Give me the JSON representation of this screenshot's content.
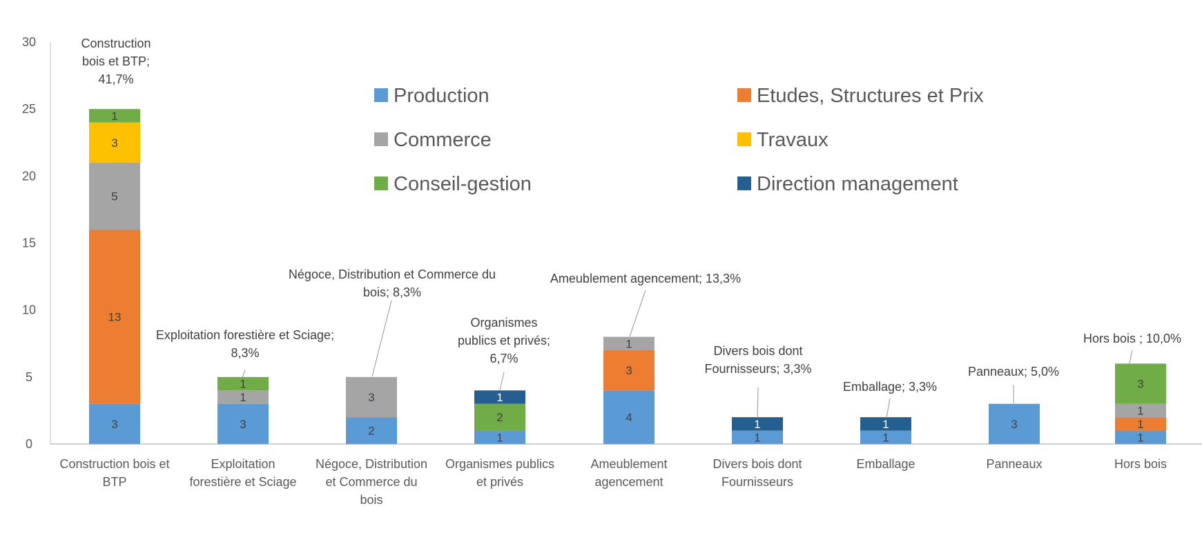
{
  "chart_data": {
    "type": "bar",
    "stacked": true,
    "categories": [
      "Construction bois et BTP",
      "Exploitation forestière et Sciage",
      "Négoce, Distribution et Commerce du bois",
      "Organismes publics et privés",
      "Ameublement agencement",
      "Divers bois dont Fournisseurs",
      "Emballage",
      "Panneaux",
      "Hors bois"
    ],
    "series": [
      {
        "name": "Production",
        "color": "#5B9BD5",
        "values": [
          3,
          3,
          2,
          1,
          4,
          1,
          1,
          3,
          1
        ]
      },
      {
        "name": "Etudes, Structures et Prix",
        "color": "#ED7D31",
        "values": [
          13,
          0,
          0,
          0,
          3,
          0,
          0,
          0,
          1
        ]
      },
      {
        "name": "Commerce",
        "color": "#A5A5A5",
        "values": [
          5,
          1,
          3,
          0,
          1,
          0,
          0,
          0,
          1
        ]
      },
      {
        "name": "Travaux",
        "color": "#FFC000",
        "values": [
          3,
          0,
          0,
          0,
          0,
          0,
          0,
          0,
          0
        ]
      },
      {
        "name": "Conseil-gestion",
        "color": "#70AD47",
        "values": [
          1,
          1,
          0,
          2,
          0,
          0,
          0,
          0,
          3
        ]
      },
      {
        "name": "Direction management",
        "color": "#255E91",
        "values": [
          0,
          0,
          0,
          1,
          0,
          1,
          1,
          0,
          0
        ]
      }
    ],
    "annotations": [
      "Construction bois et BTP; 41,7%",
      "Exploitation forestière et Sciage; 8,3%",
      "Négoce, Distribution et Commerce du bois; 8,3%",
      "Organismes publics et privés; 6,7%",
      "Ameublement agencement; 13,3%",
      "Divers bois dont Fournisseurs; 3,3%",
      "Emballage; 3,3%",
      "Panneaux; 5,0%",
      "Hors bois ; 10,0%"
    ],
    "ylim": [
      0,
      30
    ],
    "yticks": [
      0,
      5,
      10,
      15,
      20,
      25,
      30
    ],
    "grid": false,
    "legend_position": "top-center"
  }
}
